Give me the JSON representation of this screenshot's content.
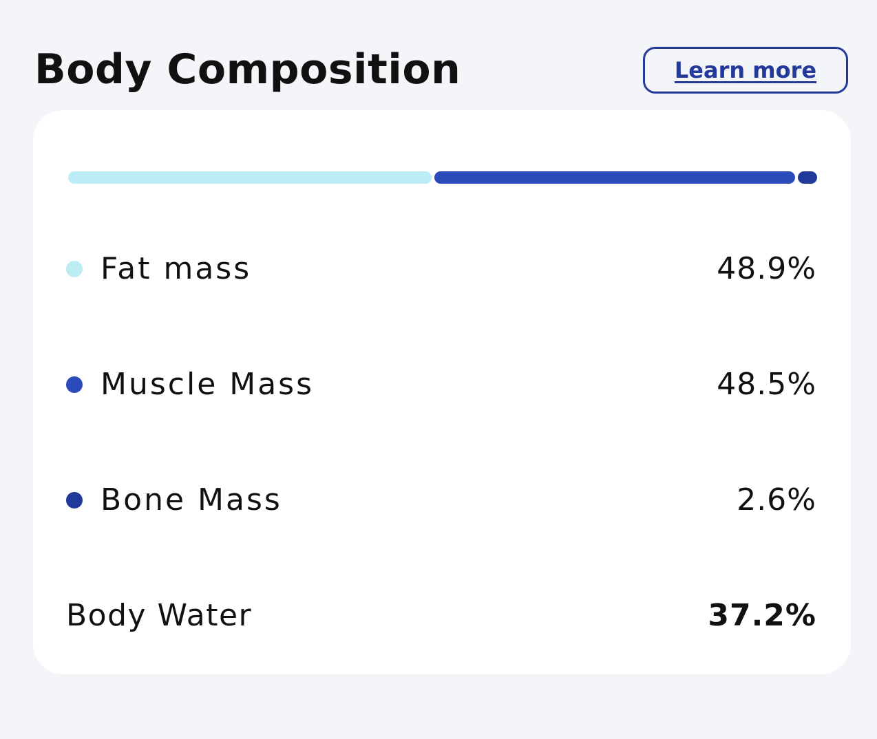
{
  "header": {
    "title": "Body Composition",
    "learn_more": "Learn more"
  },
  "composition": [
    {
      "label": "Fat mass",
      "value": "48.9%",
      "percent": 48.9,
      "color": "#bdedf4"
    },
    {
      "label": "Muscle Mass",
      "value": "48.5%",
      "percent": 48.5,
      "color": "#2c4bba"
    },
    {
      "label": "Bone Mass",
      "value": "2.6%",
      "percent": 2.6,
      "color": "#21399b"
    }
  ],
  "water": {
    "label": "Body Water",
    "value": "37.2%"
  }
}
